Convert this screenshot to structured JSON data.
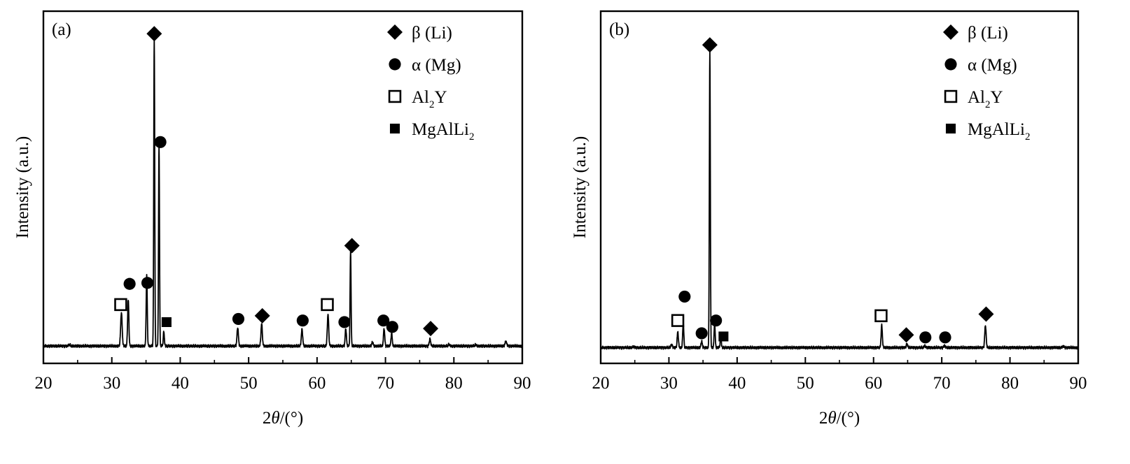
{
  "chart_data": [
    {
      "type": "line",
      "panel_label": "(a)",
      "xlabel_prefix": "2",
      "xlabel_theta": "θ",
      "xlabel_suffix": "/(°)",
      "ylabel": "Intensity (a.u.)",
      "xlim": [
        20,
        90
      ],
      "ylim": [
        0,
        100
      ],
      "xticks": [
        "20",
        "30",
        "40",
        "50",
        "60",
        "70",
        "80",
        "90"
      ],
      "legend": [
        {
          "marker": "diamond",
          "text": "β (Li)"
        },
        {
          "marker": "circle",
          "text": "α (Mg)"
        },
        {
          "marker": "open-square",
          "base": "Al",
          "sub": "2",
          "rest": "Y"
        },
        {
          "marker": "filled-square",
          "base": "MgAlLi",
          "sub": "2",
          "rest": ""
        }
      ],
      "legend_placement": "top-right",
      "baseline": 1.5,
      "peaks": [
        {
          "x": 23.8,
          "h": 0.4,
          "w": 0.12
        },
        {
          "x": 31.4,
          "h": 10.5,
          "w": 0.11
        },
        {
          "x": 32.4,
          "h": 14.5,
          "w": 0.09
        },
        {
          "x": 35.1,
          "h": 22.0,
          "w": 0.08
        },
        {
          "x": 36.2,
          "h": 97.0,
          "w": 0.07
        },
        {
          "x": 36.9,
          "h": 63.0,
          "w": 0.07
        },
        {
          "x": 37.6,
          "h": 4.5,
          "w": 0.08
        },
        {
          "x": 48.4,
          "h": 5.8,
          "w": 0.1
        },
        {
          "x": 51.9,
          "h": 7.0,
          "w": 0.1
        },
        {
          "x": 57.8,
          "h": 5.2,
          "w": 0.1
        },
        {
          "x": 61.6,
          "h": 10.0,
          "w": 0.1
        },
        {
          "x": 64.2,
          "h": 5.5,
          "w": 0.09
        },
        {
          "x": 64.9,
          "h": 30.0,
          "w": 0.07
        },
        {
          "x": 68.1,
          "h": 1.2,
          "w": 0.1
        },
        {
          "x": 69.8,
          "h": 5.5,
          "w": 0.09
        },
        {
          "x": 70.9,
          "h": 4.0,
          "w": 0.09
        },
        {
          "x": 76.5,
          "h": 2.2,
          "w": 0.1
        },
        {
          "x": 79.3,
          "h": 0.5,
          "w": 0.1
        },
        {
          "x": 83.2,
          "h": 0.4,
          "w": 0.12
        },
        {
          "x": 87.6,
          "h": 1.4,
          "w": 0.12
        }
      ],
      "markers": [
        {
          "phase": "open-square",
          "x": 31.3,
          "y": 14.5
        },
        {
          "phase": "circle",
          "x": 32.6,
          "y": 21.0
        },
        {
          "phase": "circle",
          "x": 35.2,
          "y": 21.3
        },
        {
          "phase": "diamond",
          "x": 36.2,
          "y": 99.5
        },
        {
          "phase": "circle",
          "x": 37.1,
          "y": 65.5
        },
        {
          "phase": "filled-square",
          "x": 38.0,
          "y": 9.0
        },
        {
          "phase": "circle",
          "x": 48.5,
          "y": 10.0
        },
        {
          "phase": "diamond",
          "x": 52.0,
          "y": 11.0
        },
        {
          "phase": "circle",
          "x": 57.9,
          "y": 9.5
        },
        {
          "phase": "open-square",
          "x": 61.5,
          "y": 14.5
        },
        {
          "phase": "circle",
          "x": 64.0,
          "y": 9.0
        },
        {
          "phase": "diamond",
          "x": 65.1,
          "y": 33.0
        },
        {
          "phase": "circle",
          "x": 69.7,
          "y": 9.5
        },
        {
          "phase": "circle",
          "x": 71.0,
          "y": 7.5
        },
        {
          "phase": "diamond",
          "x": 76.6,
          "y": 7.0
        }
      ]
    },
    {
      "type": "line",
      "panel_label": "(b)",
      "xlabel_prefix": "2",
      "xlabel_theta": "θ",
      "xlabel_suffix": "/(°)",
      "ylabel": "Intensity (a.u.)",
      "xlim": [
        20,
        90
      ],
      "ylim": [
        0,
        100
      ],
      "xticks": [
        "20",
        "30",
        "40",
        "50",
        "60",
        "70",
        "80",
        "90"
      ],
      "legend": [
        {
          "marker": "diamond",
          "text": "β (Li)"
        },
        {
          "marker": "circle",
          "text": "α (Mg)"
        },
        {
          "marker": "open-square",
          "base": "Al",
          "sub": "2",
          "rest": "Y"
        },
        {
          "marker": "filled-square",
          "base": "MgAlLi",
          "sub": "2",
          "rest": ""
        }
      ],
      "legend_placement": "top-right",
      "baseline": 1.0,
      "peaks": [
        {
          "x": 24.8,
          "h": 0.3,
          "w": 0.12
        },
        {
          "x": 30.4,
          "h": 1.0,
          "w": 0.1
        },
        {
          "x": 31.3,
          "h": 5.0,
          "w": 0.09
        },
        {
          "x": 32.1,
          "h": 8.0,
          "w": 0.08
        },
        {
          "x": 34.8,
          "h": 2.0,
          "w": 0.09
        },
        {
          "x": 36.0,
          "h": 93.0,
          "w": 0.07
        },
        {
          "x": 36.7,
          "h": 7.5,
          "w": 0.08
        },
        {
          "x": 37.6,
          "h": 3.5,
          "w": 0.08
        },
        {
          "x": 61.2,
          "h": 7.0,
          "w": 0.09
        },
        {
          "x": 64.9,
          "h": 1.2,
          "w": 0.1
        },
        {
          "x": 67.5,
          "h": 0.6,
          "w": 0.1
        },
        {
          "x": 70.4,
          "h": 0.6,
          "w": 0.1
        },
        {
          "x": 76.4,
          "h": 7.0,
          "w": 0.1
        },
        {
          "x": 87.8,
          "h": 0.4,
          "w": 0.12
        }
      ],
      "markers": [
        {
          "phase": "open-square",
          "x": 31.3,
          "y": 9.5
        },
        {
          "phase": "circle",
          "x": 32.3,
          "y": 17.0
        },
        {
          "phase": "circle",
          "x": 34.8,
          "y": 5.5
        },
        {
          "phase": "diamond",
          "x": 36.0,
          "y": 96.0
        },
        {
          "phase": "circle",
          "x": 36.9,
          "y": 9.5
        },
        {
          "phase": "filled-square",
          "x": 38.0,
          "y": 4.5
        },
        {
          "phase": "open-square",
          "x": 61.1,
          "y": 11.0
        },
        {
          "phase": "diamond",
          "x": 64.8,
          "y": 5.0
        },
        {
          "phase": "circle",
          "x": 67.6,
          "y": 4.2
        },
        {
          "phase": "circle",
          "x": 70.5,
          "y": 4.2
        },
        {
          "phase": "diamond",
          "x": 76.5,
          "y": 11.5
        }
      ]
    }
  ]
}
